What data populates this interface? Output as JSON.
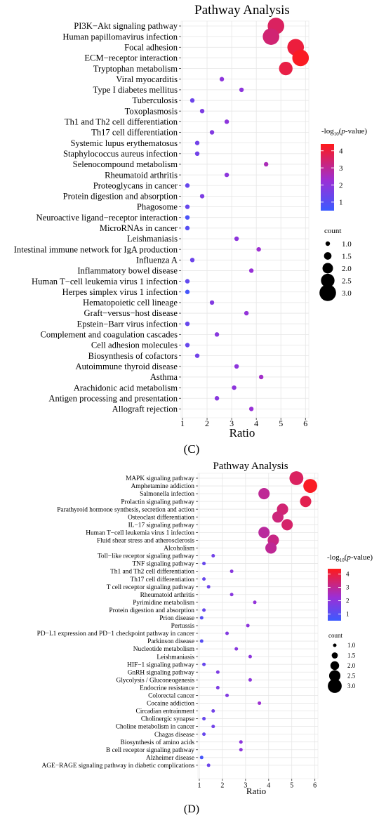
{
  "chart_data": [
    {
      "type": "scatter",
      "title": "Pathway Analysis",
      "xlabel": "Ratio",
      "ylabel": "",
      "xlim": [
        1,
        6
      ],
      "xticks": [
        1,
        2,
        3,
        4,
        5,
        6
      ],
      "grid": true,
      "color_scale": {
        "title": "-log10(p-value)",
        "range": [
          0.5,
          4.4
        ],
        "ticks": [
          1,
          2,
          3,
          4
        ],
        "low_color": "#3b5bff",
        "mid_color": "#9b2fd6",
        "high_color": "#ff1a1a"
      },
      "size_legend": {
        "title": "count",
        "values": [
          1.0,
          1.5,
          2.0,
          2.5,
          3.0
        ],
        "labels": [
          "1.0",
          "1.5",
          "2.0",
          "2.5",
          "3.0"
        ]
      },
      "points": [
        {
          "pathway": "PI3K−Akt signaling pathway",
          "ratio": 4.8,
          "count": 3,
          "neglogp": 3.6
        },
        {
          "pathway": "Human papillomavirus infection",
          "ratio": 4.6,
          "count": 3,
          "neglogp": 3.4
        },
        {
          "pathway": "Focal adhesion",
          "ratio": 5.6,
          "count": 3,
          "neglogp": 4.0
        },
        {
          "pathway": "ECM−receptor interaction",
          "ratio": 5.8,
          "count": 3,
          "neglogp": 4.3
        },
        {
          "pathway": "Tryptophan metabolism",
          "ratio": 5.2,
          "count": 2.5,
          "neglogp": 3.9
        },
        {
          "pathway": "Viral myocarditis",
          "ratio": 2.6,
          "count": 1,
          "neglogp": 2.0
        },
        {
          "pathway": "Type I diabetes mellitus",
          "ratio": 3.4,
          "count": 1,
          "neglogp": 2.0
        },
        {
          "pathway": "Tuberculosis",
          "ratio": 1.4,
          "count": 1,
          "neglogp": 1.4
        },
        {
          "pathway": "Toxoplasmosis",
          "ratio": 1.8,
          "count": 1,
          "neglogp": 1.7
        },
        {
          "pathway": "Th1 and Th2 cell differentiation",
          "ratio": 2.8,
          "count": 1,
          "neglogp": 2.0
        },
        {
          "pathway": "Th17 cell differentiation",
          "ratio": 2.2,
          "count": 1,
          "neglogp": 1.8
        },
        {
          "pathway": "Systemic lupus erythematosus",
          "ratio": 1.6,
          "count": 1,
          "neglogp": 1.5
        },
        {
          "pathway": "Staphylococcus aureus infection",
          "ratio": 1.6,
          "count": 1,
          "neglogp": 1.5
        },
        {
          "pathway": "Selenocompound metabolism",
          "ratio": 4.4,
          "count": 1,
          "neglogp": 2.6
        },
        {
          "pathway": "Rheumatoid arthritis",
          "ratio": 2.8,
          "count": 1,
          "neglogp": 2.0
        },
        {
          "pathway": "Proteoglycans in cancer",
          "ratio": 1.2,
          "count": 1,
          "neglogp": 1.3
        },
        {
          "pathway": "Protein digestion and absorption",
          "ratio": 1.8,
          "count": 1,
          "neglogp": 1.7
        },
        {
          "pathway": "Phagosome",
          "ratio": 1.2,
          "count": 1,
          "neglogp": 1.3
        },
        {
          "pathway": "Neuroactive ligand−receptor interaction",
          "ratio": 1.2,
          "count": 1,
          "neglogp": 0.8
        },
        {
          "pathway": "MicroRNAs in cancer",
          "ratio": 1.2,
          "count": 1,
          "neglogp": 1.0
        },
        {
          "pathway": "Leishmaniasis",
          "ratio": 3.2,
          "count": 1,
          "neglogp": 2.0
        },
        {
          "pathway": "Intestinal immune network for IgA production",
          "ratio": 4.1,
          "count": 1,
          "neglogp": 2.3
        },
        {
          "pathway": "Influenza A",
          "ratio": 1.4,
          "count": 1,
          "neglogp": 1.4
        },
        {
          "pathway": "Inflammatory bowel disease",
          "ratio": 3.8,
          "count": 1,
          "neglogp": 2.2
        },
        {
          "pathway": "Human T−cell leukemia virus 1 infection",
          "ratio": 1.2,
          "count": 1,
          "neglogp": 1.2
        },
        {
          "pathway": "Herpes simplex virus 1 infection",
          "ratio": 1.2,
          "count": 1,
          "neglogp": 0.7
        },
        {
          "pathway": "Hematopoietic cell lineage",
          "ratio": 2.2,
          "count": 1,
          "neglogp": 1.8
        },
        {
          "pathway": "Graft−versus−host disease",
          "ratio": 3.6,
          "count": 1,
          "neglogp": 2.1
        },
        {
          "pathway": "Epstein−Barr virus infection",
          "ratio": 1.2,
          "count": 1,
          "neglogp": 1.3
        },
        {
          "pathway": "Complement and coagulation cascades",
          "ratio": 2.4,
          "count": 1,
          "neglogp": 1.9
        },
        {
          "pathway": "Cell adhesion molecules",
          "ratio": 1.2,
          "count": 1,
          "neglogp": 1.3
        },
        {
          "pathway": "Biosynthesis of cofactors",
          "ratio": 1.6,
          "count": 1,
          "neglogp": 1.5
        },
        {
          "pathway": "Autoimmune thyroid disease",
          "ratio": 3.2,
          "count": 1,
          "neglogp": 2.0
        },
        {
          "pathway": "Asthma",
          "ratio": 4.2,
          "count": 1,
          "neglogp": 2.4
        },
        {
          "pathway": "Arachidonic acid metabolism",
          "ratio": 3.1,
          "count": 1,
          "neglogp": 2.0
        },
        {
          "pathway": "Antigen processing and presentation",
          "ratio": 2.4,
          "count": 1,
          "neglogp": 1.9
        },
        {
          "pathway": "Allograft rejection",
          "ratio": 3.8,
          "count": 1,
          "neglogp": 2.2
        }
      ]
    },
    {
      "type": "scatter",
      "title": "Pathway Analysis",
      "xlabel": "Ratio",
      "ylabel": "",
      "xlim": [
        1,
        6
      ],
      "xticks": [
        1,
        2,
        3,
        4,
        5,
        6
      ],
      "grid": true,
      "color_scale": {
        "title": "-log10(p-value)",
        "range": [
          0.5,
          4.4
        ],
        "ticks": [
          1,
          2,
          3,
          4
        ],
        "low_color": "#3b5bff",
        "mid_color": "#9b2fd6",
        "high_color": "#ff1a1a"
      },
      "size_legend": {
        "title": "count",
        "values": [
          1.0,
          1.5,
          2.0,
          2.5,
          3.0
        ],
        "labels": [
          "1.0",
          "1.5",
          "2.0",
          "2.5",
          "3.0"
        ]
      },
      "points": [
        {
          "pathway": "MAPK signaling pathway",
          "ratio": 5.2,
          "count": 3,
          "neglogp": 3.6
        },
        {
          "pathway": "Amphetamine addiction",
          "ratio": 5.8,
          "count": 3,
          "neglogp": 4.3
        },
        {
          "pathway": "Salmonella infection",
          "ratio": 3.8,
          "count": 2.5,
          "neglogp": 3.0
        },
        {
          "pathway": "Prolactin signaling pathway",
          "ratio": 5.6,
          "count": 2.5,
          "neglogp": 3.8
        },
        {
          "pathway": "Parathyroid hormone synthesis, secretion and action",
          "ratio": 4.6,
          "count": 2.5,
          "neglogp": 3.4
        },
        {
          "pathway": "Osteoclast differentiation",
          "ratio": 4.4,
          "count": 2.5,
          "neglogp": 3.3
        },
        {
          "pathway": "IL−17 signaling pathway",
          "ratio": 4.8,
          "count": 2.5,
          "neglogp": 3.5
        },
        {
          "pathway": "Human T−cell leukemia virus 1 infection",
          "ratio": 3.8,
          "count": 2.5,
          "neglogp": 2.9
        },
        {
          "pathway": "Fluid shear stress and atherosclerosis",
          "ratio": 4.2,
          "count": 2.5,
          "neglogp": 3.2
        },
        {
          "pathway": "Alcoholism",
          "ratio": 4.1,
          "count": 2.5,
          "neglogp": 3.0
        },
        {
          "pathway": "Toll−like receptor signaling pathway",
          "ratio": 1.6,
          "count": 1,
          "neglogp": 1.5
        },
        {
          "pathway": "TNF signaling pathway",
          "ratio": 1.2,
          "count": 1,
          "neglogp": 1.3
        },
        {
          "pathway": "Th1 and Th2 cell differentiation",
          "ratio": 2.4,
          "count": 1,
          "neglogp": 1.9
        },
        {
          "pathway": "Th17 cell differentiation",
          "ratio": 1.2,
          "count": 1,
          "neglogp": 1.3
        },
        {
          "pathway": "T cell receptor signaling pathway",
          "ratio": 1.4,
          "count": 1,
          "neglogp": 1.4
        },
        {
          "pathway": "Rheumatoid arthritis",
          "ratio": 2.4,
          "count": 1,
          "neglogp": 1.9
        },
        {
          "pathway": "Pyrimidine metabolism",
          "ratio": 3.4,
          "count": 1,
          "neglogp": 2.1
        },
        {
          "pathway": "Protein digestion and absorption",
          "ratio": 1.2,
          "count": 1,
          "neglogp": 1.3
        },
        {
          "pathway": "Prion disease",
          "ratio": 1.1,
          "count": 1,
          "neglogp": 1.0
        },
        {
          "pathway": "Pertussis",
          "ratio": 3.1,
          "count": 1,
          "neglogp": 2.0
        },
        {
          "pathway": "PD−L1 expression and PD−1 checkpoint pathway in cancer",
          "ratio": 2.2,
          "count": 1,
          "neglogp": 1.8
        },
        {
          "pathway": "Parkinson disease",
          "ratio": 1.1,
          "count": 1,
          "neglogp": 1.0
        },
        {
          "pathway": "Nucleotide metabolism",
          "ratio": 2.6,
          "count": 1,
          "neglogp": 1.9
        },
        {
          "pathway": "Leishmaniasis",
          "ratio": 3.2,
          "count": 1,
          "neglogp": 2.0
        },
        {
          "pathway": "HIF−1 signaling pathway",
          "ratio": 1.2,
          "count": 1,
          "neglogp": 1.3
        },
        {
          "pathway": "GnRH signaling pathway",
          "ratio": 1.8,
          "count": 1,
          "neglogp": 1.7
        },
        {
          "pathway": "Glycolysis / Gluconeogenesis",
          "ratio": 3.2,
          "count": 1,
          "neglogp": 2.0
        },
        {
          "pathway": "Endocrine resistance",
          "ratio": 1.8,
          "count": 1,
          "neglogp": 1.7
        },
        {
          "pathway": "Colorectal cancer",
          "ratio": 2.2,
          "count": 1,
          "neglogp": 1.8
        },
        {
          "pathway": "Cocaine addiction",
          "ratio": 3.6,
          "count": 1,
          "neglogp": 2.3
        },
        {
          "pathway": "Circadian entrainment",
          "ratio": 1.6,
          "count": 1,
          "neglogp": 1.5
        },
        {
          "pathway": "Cholinergic synapse",
          "ratio": 1.2,
          "count": 1,
          "neglogp": 1.3
        },
        {
          "pathway": "Choline metabolism in cancer",
          "ratio": 1.6,
          "count": 1,
          "neglogp": 1.5
        },
        {
          "pathway": "Chagas disease",
          "ratio": 1.2,
          "count": 1,
          "neglogp": 1.3
        },
        {
          "pathway": "Biosynthesis of amino acids",
          "ratio": 2.8,
          "count": 1,
          "neglogp": 2.0
        },
        {
          "pathway": "B cell receptor signaling pathway",
          "ratio": 2.8,
          "count": 1,
          "neglogp": 2.0
        },
        {
          "pathway": "Alzheimer disease",
          "ratio": 1.1,
          "count": 1,
          "neglogp": 0.7
        },
        {
          "pathway": "AGE−RAGE signaling pathway in diabetic complications",
          "ratio": 1.4,
          "count": 1,
          "neglogp": 1.4
        }
      ]
    }
  ],
  "panels": {
    "c": {
      "caption": "(C)"
    },
    "d": {
      "caption": "(D)"
    }
  }
}
